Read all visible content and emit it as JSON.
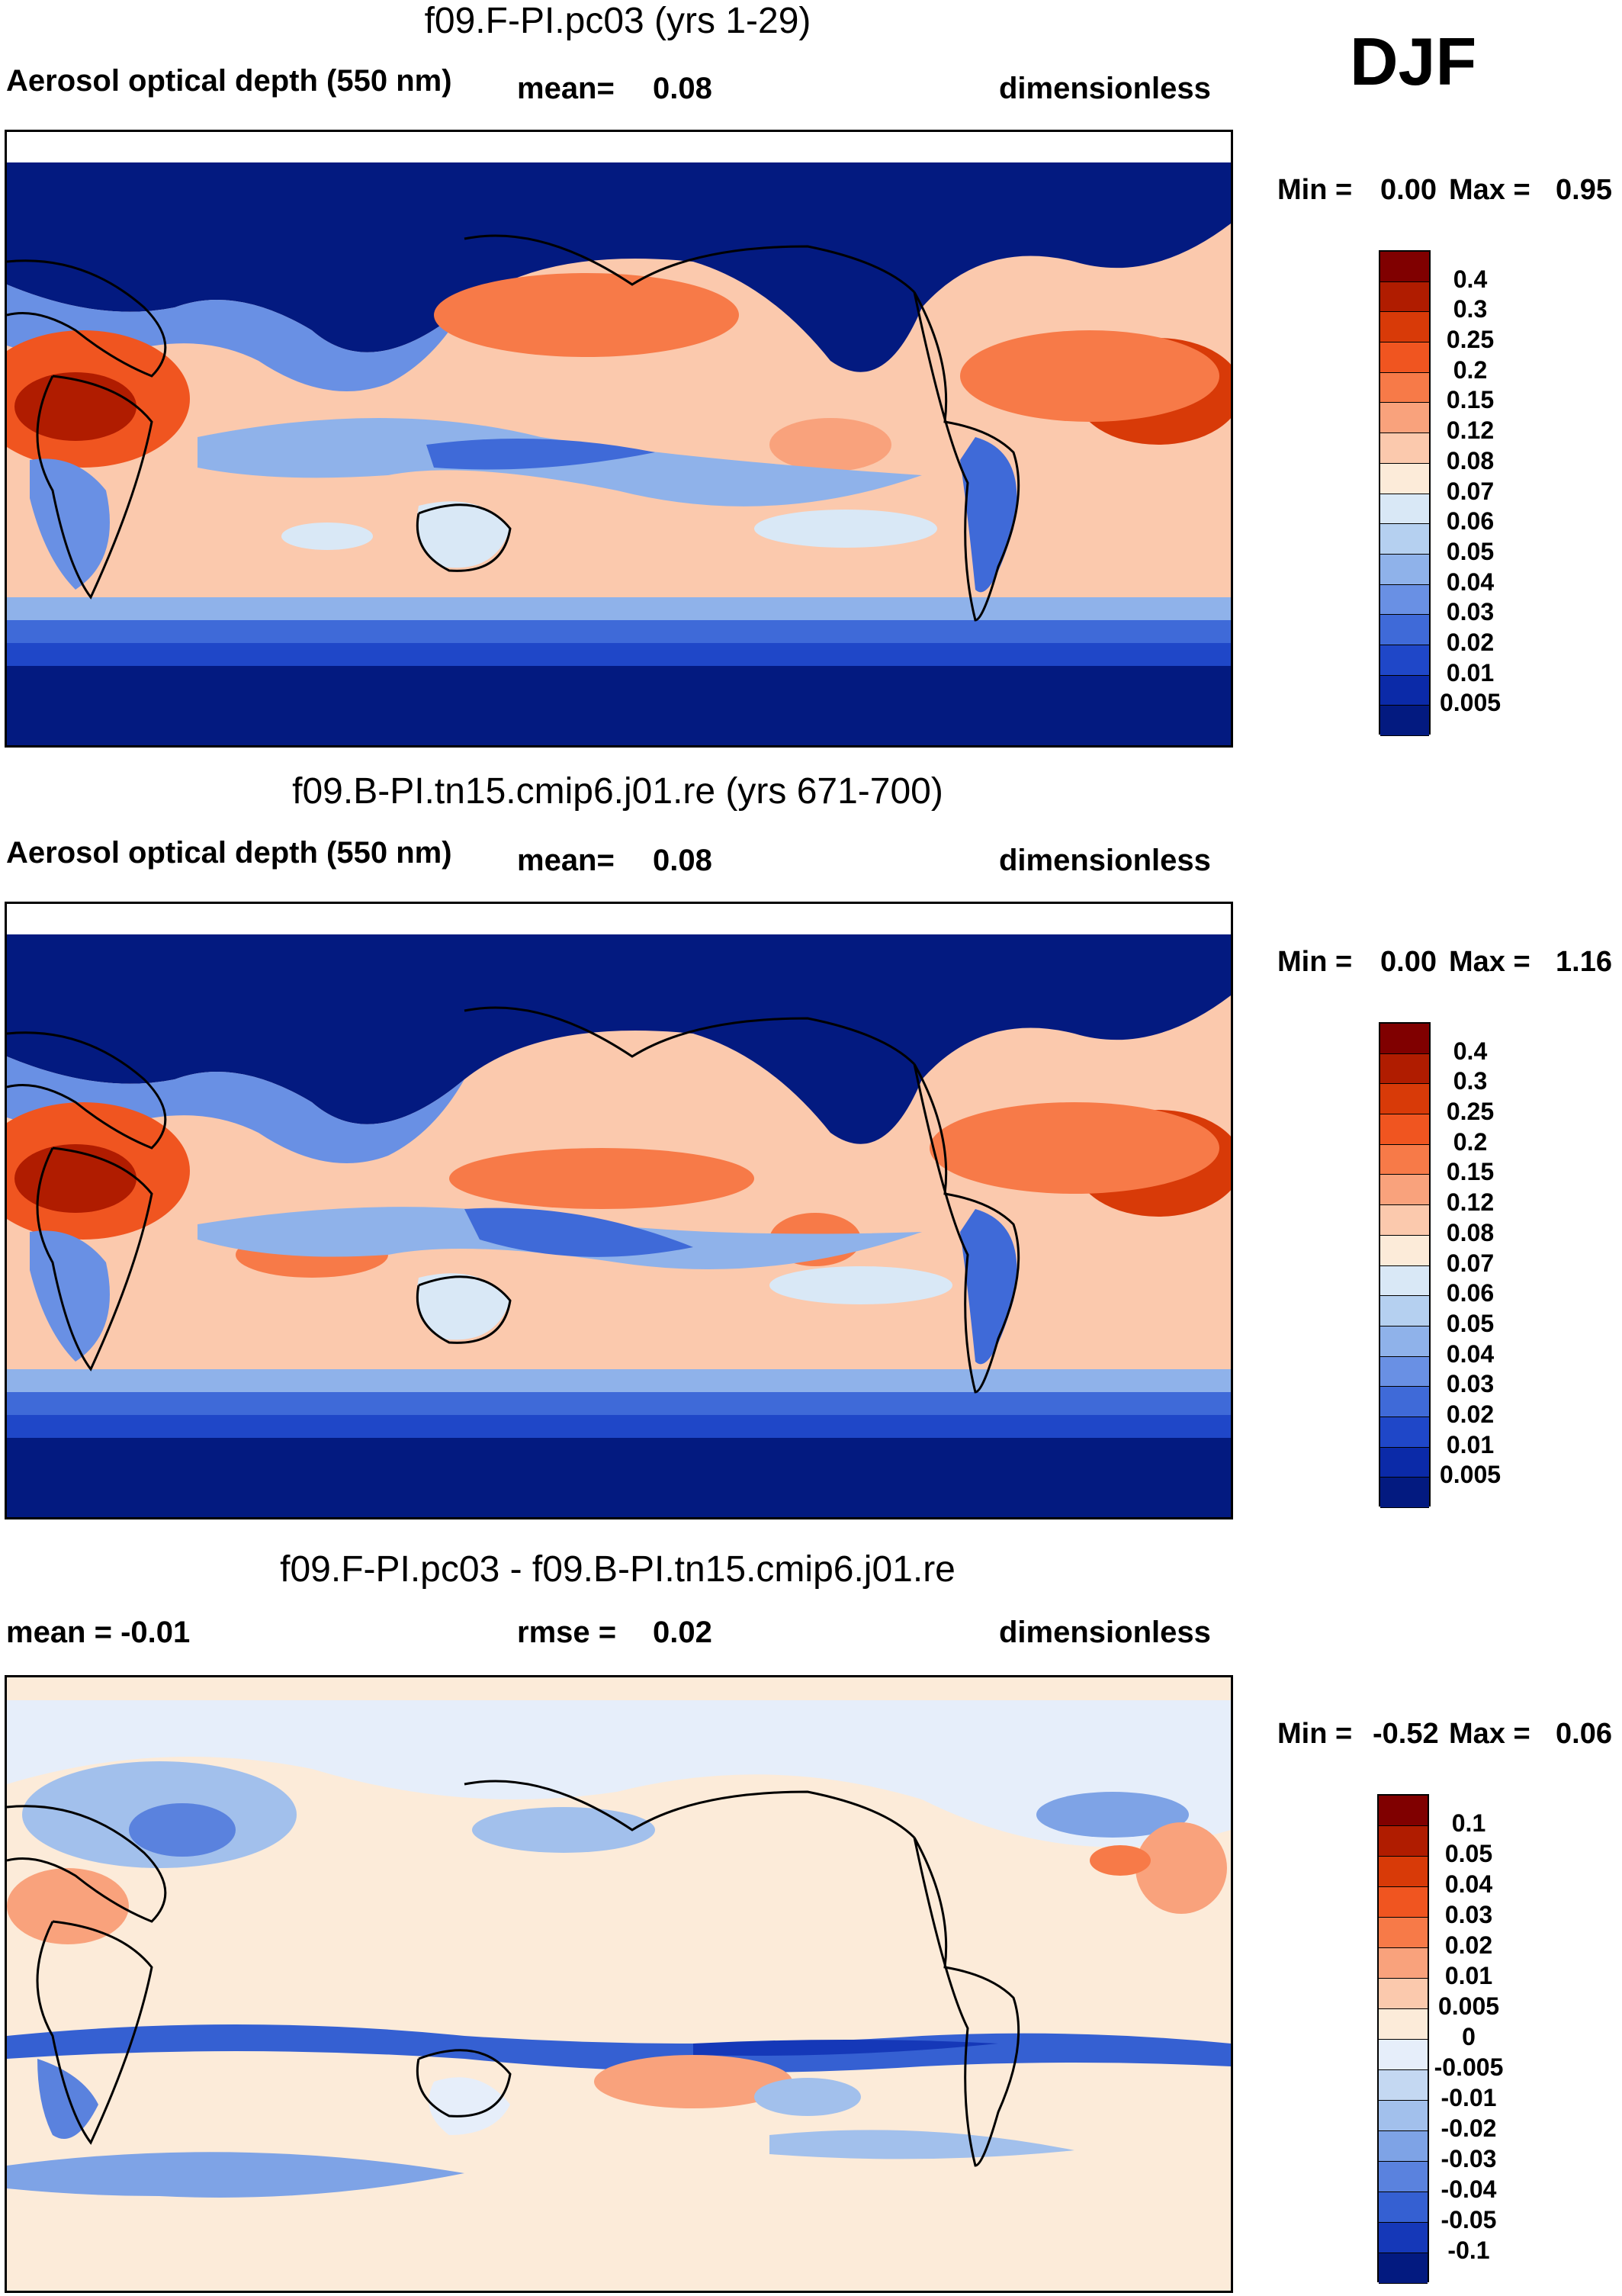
{
  "season": "DJF",
  "panels": [
    {
      "id": "panel1",
      "title": "f09.F-PI.pc03 (yrs 1-29)",
      "left_text": "Aerosol optical depth (550 nm)",
      "mid_label": "mean=",
      "mid_value": "0.08",
      "units": "dimensionless",
      "min_label": "Min =",
      "min_value": "0.00",
      "max_label": "Max =",
      "max_value": "0.95",
      "colorbar_labels": [
        "0.4",
        "0.3",
        "0.25",
        "0.2",
        "0.15",
        "0.12",
        "0.08",
        "0.07",
        "0.06",
        "0.05",
        "0.04",
        "0.03",
        "0.02",
        "0.01",
        "0.005"
      ],
      "colorbar_colors": [
        "#800000",
        "#b01c00",
        "#d83a08",
        "#f05520",
        "#f77a48",
        "#f9a27c",
        "#fbc9ad",
        "#fcebd9",
        "#d9e8f6",
        "#b5d0f0",
        "#8fb2ea",
        "#6990e4",
        "#3f6ad8",
        "#1f47c8",
        "#0b2aa8",
        "#031a80"
      ]
    },
    {
      "id": "panel2",
      "title": "f09.B-PI.tn15.cmip6.j01.re (yrs 671-700)",
      "left_text": "Aerosol optical depth (550 nm)",
      "mid_label": "mean=",
      "mid_value": "0.08",
      "units": "dimensionless",
      "min_label": "Min =",
      "min_value": "0.00",
      "max_label": "Max =",
      "max_value": "1.16",
      "colorbar_labels": [
        "0.4",
        "0.3",
        "0.25",
        "0.2",
        "0.15",
        "0.12",
        "0.08",
        "0.07",
        "0.06",
        "0.05",
        "0.04",
        "0.03",
        "0.02",
        "0.01",
        "0.005"
      ],
      "colorbar_colors": [
        "#800000",
        "#b01c00",
        "#d83a08",
        "#f05520",
        "#f77a48",
        "#f9a27c",
        "#fbc9ad",
        "#fcebd9",
        "#d9e8f6",
        "#b5d0f0",
        "#8fb2ea",
        "#6990e4",
        "#3f6ad8",
        "#1f47c8",
        "#0b2aa8",
        "#031a80"
      ]
    },
    {
      "id": "panel3",
      "title": "f09.F-PI.pc03 - f09.B-PI.tn15.cmip6.j01.re",
      "left_text": "mean =  -0.01",
      "mid_label": "rmse =",
      "mid_value": "0.02",
      "units": "dimensionless",
      "min_label": "Min =",
      "min_value": "-0.52",
      "max_label": "Max =",
      "max_value": "0.06",
      "colorbar_labels": [
        "0.1",
        "0.05",
        "0.04",
        "0.03",
        "0.02",
        "0.01",
        "0.005",
        "0",
        "-0.005",
        "-0.01",
        "-0.02",
        "-0.03",
        "-0.04",
        "-0.05",
        "-0.1"
      ],
      "colorbar_colors": [
        "#800000",
        "#b01c00",
        "#d83a08",
        "#f05520",
        "#f77a48",
        "#f9a27c",
        "#fbc9ad",
        "#fcebd9",
        "#e6eefa",
        "#c4d8f2",
        "#a2c0ec",
        "#7ea3e6",
        "#5a82de",
        "#3560d2",
        "#1538b8",
        "#031a80"
      ]
    }
  ],
  "palette": {
    "deep_blue": "#031a80",
    "mid_blue": "#3f6ad8",
    "light_blue": "#b5d0f0",
    "cream": "#fcebd9",
    "salmon": "#f9a27c",
    "orange": "#f05520",
    "dark_red": "#b01c00"
  }
}
